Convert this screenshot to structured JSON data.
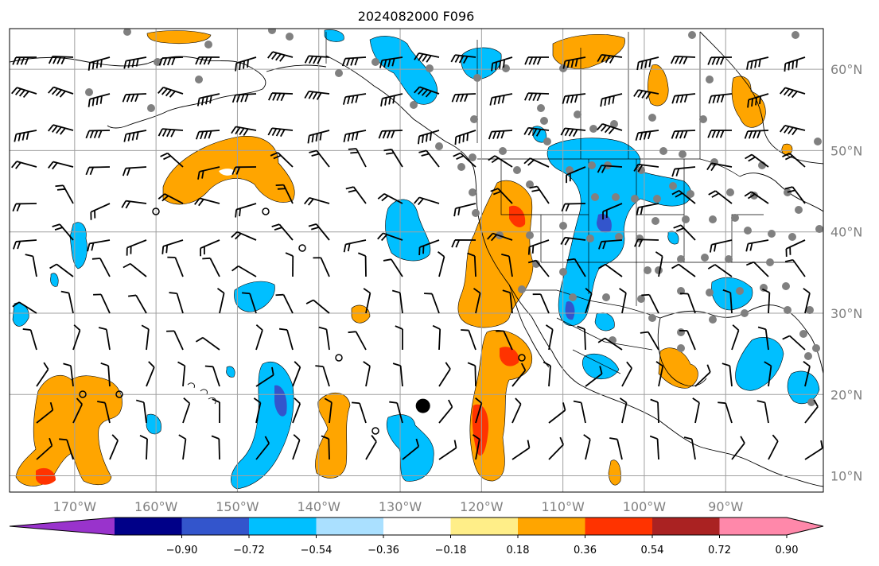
{
  "title": "2024082000 F096",
  "map": {
    "lon_range": [
      -178,
      -78
    ],
    "lat_range": [
      8,
      65
    ],
    "grid": true,
    "lon_ticks": [
      {
        "value": -170,
        "label": "170°W"
      },
      {
        "value": -160,
        "label": "160°W"
      },
      {
        "value": -150,
        "label": "150°W"
      },
      {
        "value": -140,
        "label": "140°W"
      },
      {
        "value": -130,
        "label": "130°W"
      },
      {
        "value": -120,
        "label": "120°W"
      },
      {
        "value": -110,
        "label": "110°W"
      },
      {
        "value": -100,
        "label": "100°W"
      },
      {
        "value": -90,
        "label": "90°W"
      }
    ],
    "lat_ticks": [
      {
        "value": 10,
        "label": "10°N"
      },
      {
        "value": 20,
        "label": "20°N"
      },
      {
        "value": 30,
        "label": "30°N"
      },
      {
        "value": 40,
        "label": "40°N"
      },
      {
        "value": 50,
        "label": "50°N"
      },
      {
        "value": 60,
        "label": "60°N"
      }
    ],
    "label_color": "#808080",
    "center_marker": {
      "lon": -127.2,
      "lat": 18.6
    }
  },
  "colorbar": {
    "colors": [
      "#9933cc",
      "#000088",
      "#3355cc",
      "#00bfff",
      "#aae0ff",
      "#ffffff",
      "#ffee88",
      "#ffa500",
      "#ff3300",
      "#aa2222",
      "#ff88aa"
    ],
    "ticks": [
      "−0.90",
      "−0.72",
      "−0.54",
      "−0.36",
      "−0.18",
      "0.18",
      "0.36",
      "0.54",
      "0.72",
      "0.90"
    ],
    "extend": "both"
  },
  "palette": {
    "orange": "#ffa500",
    "red": "#ff3300",
    "lightblue": "#00bfff",
    "blue": "#3355cc",
    "station": "#808080",
    "barb": "#000000"
  }
}
